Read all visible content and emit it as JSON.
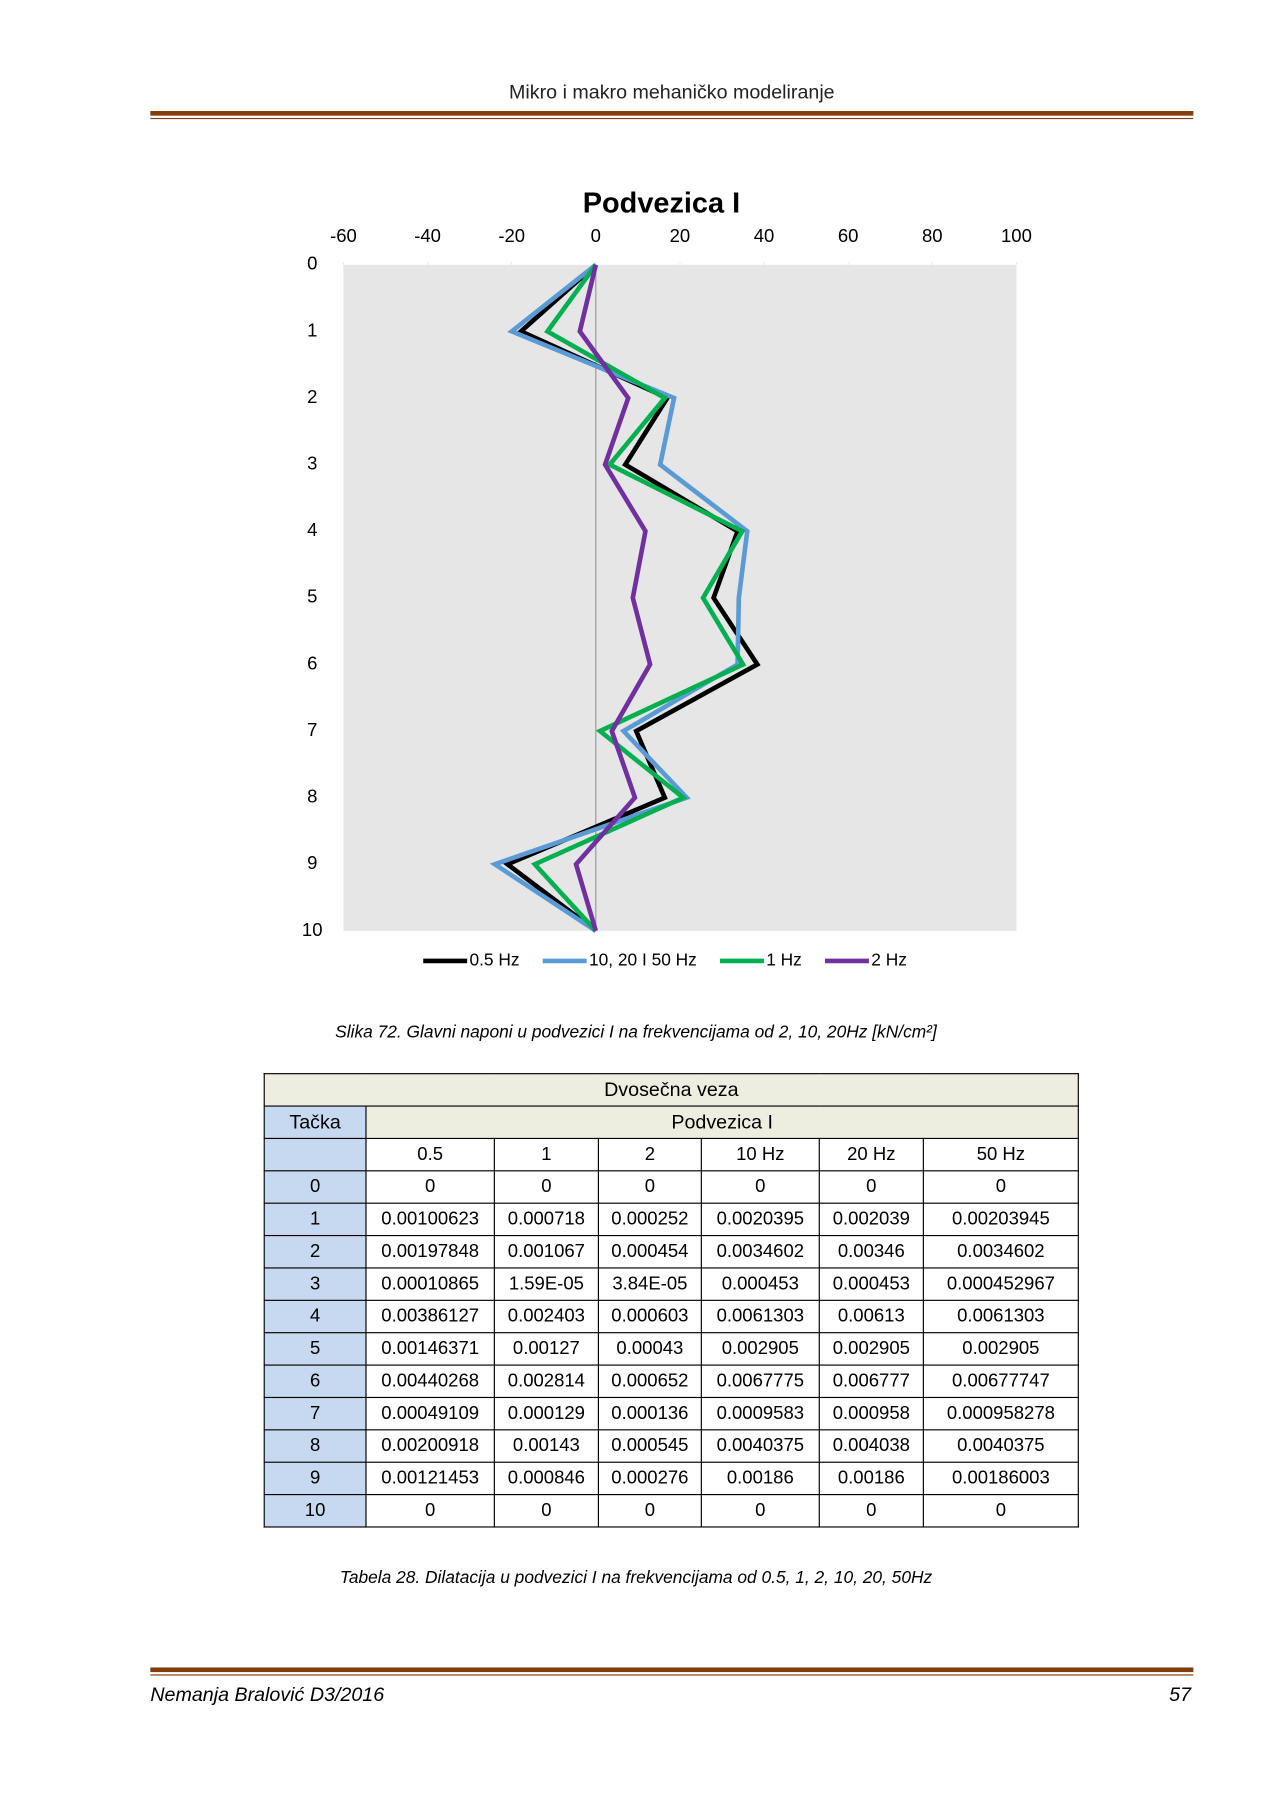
{
  "header": {
    "title": "Mikro i makro mehaničko modeliranje"
  },
  "chart_data": {
    "type": "line",
    "orientation": "vertical",
    "title": "Podvezica I",
    "categories": [
      "0",
      "1",
      "2",
      "3",
      "4",
      "5",
      "6",
      "7",
      "8",
      "9",
      "10"
    ],
    "xlim": [
      -60,
      100
    ],
    "xticks": [
      -60,
      -40,
      -20,
      0,
      20,
      40,
      60,
      80,
      100
    ],
    "legend": "bottom",
    "series": [
      {
        "name": "0.5 Hz",
        "color": "#000000",
        "values": [
          0,
          -17.8,
          17,
          7,
          33.7,
          28,
          38.4,
          9.6,
          16.4,
          -21,
          0
        ]
      },
      {
        "name": "10, 20 I 50 Hz",
        "color": "#5b9bd5",
        "values": [
          0,
          -20,
          18.6,
          15.3,
          36,
          34,
          33.7,
          6.6,
          21.6,
          -24,
          0
        ]
      },
      {
        "name": "1 Hz",
        "color": "#00b050",
        "values": [
          0,
          -11.5,
          16.4,
          3.3,
          34.8,
          25.5,
          35,
          1,
          20.8,
          -14.5,
          0
        ]
      },
      {
        "name": "2 Hz",
        "color": "#7030a0",
        "values": [
          0,
          -3.8,
          7.7,
          2.2,
          11.8,
          8.8,
          12.9,
          3.8,
          9.3,
          -4.7,
          0
        ]
      }
    ]
  },
  "figure_caption": "Slika 72. Glavni naponi u podvezici I na frekvencijama od 2, 10, 20Hz  [kN/cm²]",
  "table": {
    "title": "Dvosečna veza",
    "row_header": "Tačka",
    "group": "Podvezica I",
    "columns": [
      "0.5",
      "1",
      "2",
      "10 Hz",
      "20 Hz",
      "50 Hz"
    ],
    "rows": [
      [
        "0",
        "0",
        "0",
        "0",
        "0",
        "0",
        "0"
      ],
      [
        "1",
        "0.00100623",
        "0.000718",
        "0.000252",
        "0.0020395",
        "0.002039",
        "0.00203945"
      ],
      [
        "2",
        "0.00197848",
        "0.001067",
        "0.000454",
        "0.0034602",
        "0.00346",
        "0.0034602"
      ],
      [
        "3",
        "0.00010865",
        "1.59E-05",
        "3.84E-05",
        "0.000453",
        "0.000453",
        "0.000452967"
      ],
      [
        "4",
        "0.00386127",
        "0.002403",
        "0.000603",
        "0.0061303",
        "0.00613",
        "0.0061303"
      ],
      [
        "5",
        "0.00146371",
        "0.00127",
        "0.00043",
        "0.002905",
        "0.002905",
        "0.002905"
      ],
      [
        "6",
        "0.00440268",
        "0.002814",
        "0.000652",
        "0.0067775",
        "0.006777",
        "0.00677747"
      ],
      [
        "7",
        "0.00049109",
        "0.000129",
        "0.000136",
        "0.0009583",
        "0.000958",
        "0.000958278"
      ],
      [
        "8",
        "0.00200918",
        "0.00143",
        "0.000545",
        "0.0040375",
        "0.004038",
        "0.0040375"
      ],
      [
        "9",
        "0.00121453",
        "0.000846",
        "0.000276",
        "0.00186",
        "0.00186",
        "0.00186003"
      ],
      [
        "10",
        "0",
        "0",
        "0",
        "0",
        "0",
        "0"
      ]
    ]
  },
  "table_caption": "Tabela 28. Dilatacija u podvezici I na frekvencijama od 0.5, 1, 2, 10, 20, 50Hz",
  "footer": {
    "author": "Nemanja Bralović D3/2016",
    "page": "57"
  }
}
